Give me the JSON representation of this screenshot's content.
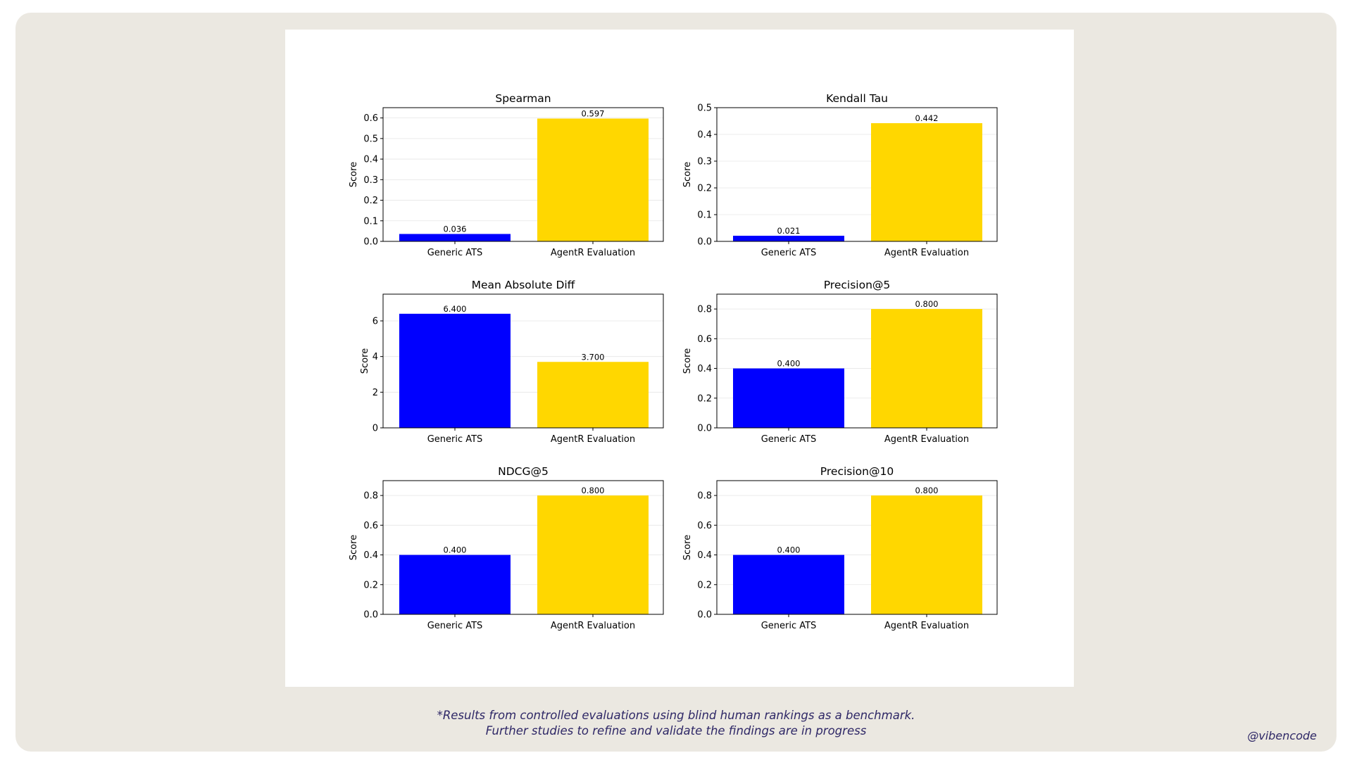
{
  "colors": {
    "generic": "#0000ff",
    "agentr": "#ffd700",
    "background": "#ebe8e1",
    "text_accent": "#2e2766"
  },
  "chart_data": [
    {
      "type": "bar",
      "title": "Spearman",
      "ylabel": "Score",
      "categories": [
        "Generic ATS",
        "AgentR Evaluation"
      ],
      "values": [
        0.036,
        0.597
      ],
      "value_labels": [
        "0.036",
        "0.597"
      ],
      "ylim": [
        0,
        0.65
      ],
      "yticks": [
        0.0,
        0.1,
        0.2,
        0.3,
        0.4,
        0.5,
        0.6
      ],
      "ytick_labels": [
        "0.0",
        "0.1",
        "0.2",
        "0.3",
        "0.4",
        "0.5",
        "0.6"
      ],
      "grid": true
    },
    {
      "type": "bar",
      "title": "Kendall Tau",
      "ylabel": "Score",
      "categories": [
        "Generic ATS",
        "AgentR Evaluation"
      ],
      "values": [
        0.021,
        0.442
      ],
      "value_labels": [
        "0.021",
        "0.442"
      ],
      "ylim": [
        0,
        0.5
      ],
      "yticks": [
        0.0,
        0.1,
        0.2,
        0.3,
        0.4,
        0.5
      ],
      "ytick_labels": [
        "0.0",
        "0.1",
        "0.2",
        "0.3",
        "0.4",
        "0.5"
      ],
      "grid": true
    },
    {
      "type": "bar",
      "title": "Mean Absolute Diff",
      "ylabel": "Score",
      "categories": [
        "Generic ATS",
        "AgentR Evaluation"
      ],
      "values": [
        6.4,
        3.7
      ],
      "value_labels": [
        "6.400",
        "3.700"
      ],
      "ylim": [
        0,
        7.5
      ],
      "yticks": [
        0,
        2,
        4,
        6
      ],
      "ytick_labels": [
        "0",
        "2",
        "4",
        "6"
      ],
      "grid": true
    },
    {
      "type": "bar",
      "title": "Precision@5",
      "ylabel": "Score",
      "categories": [
        "Generic ATS",
        "AgentR Evaluation"
      ],
      "values": [
        0.4,
        0.8
      ],
      "value_labels": [
        "0.400",
        "0.800"
      ],
      "ylim": [
        0,
        0.9
      ],
      "yticks": [
        0.0,
        0.2,
        0.4,
        0.6,
        0.8
      ],
      "ytick_labels": [
        "0.0",
        "0.2",
        "0.4",
        "0.6",
        "0.8"
      ],
      "grid": true
    },
    {
      "type": "bar",
      "title": "NDCG@5",
      "ylabel": "Score",
      "categories": [
        "Generic ATS",
        "AgentR Evaluation"
      ],
      "values": [
        0.4,
        0.8
      ],
      "value_labels": [
        "0.400",
        "0.800"
      ],
      "ylim": [
        0,
        0.9
      ],
      "yticks": [
        0.0,
        0.2,
        0.4,
        0.6,
        0.8
      ],
      "ytick_labels": [
        "0.0",
        "0.2",
        "0.4",
        "0.6",
        "0.8"
      ],
      "grid": true
    },
    {
      "type": "bar",
      "title": "Precision@10",
      "ylabel": "Score",
      "categories": [
        "Generic ATS",
        "AgentR Evaluation"
      ],
      "values": [
        0.4,
        0.8
      ],
      "value_labels": [
        "0.400",
        "0.800"
      ],
      "ylim": [
        0,
        0.9
      ],
      "yticks": [
        0.0,
        0.2,
        0.4,
        0.6,
        0.8
      ],
      "ytick_labels": [
        "0.0",
        "0.2",
        "0.4",
        "0.6",
        "0.8"
      ],
      "grid": true
    }
  ],
  "footnote": {
    "line1": "*Results from controlled evaluations using blind human rankings as a benchmark.",
    "line2": "Further studies to refine and validate the findings are in progress"
  },
  "handle": "@vibencode"
}
